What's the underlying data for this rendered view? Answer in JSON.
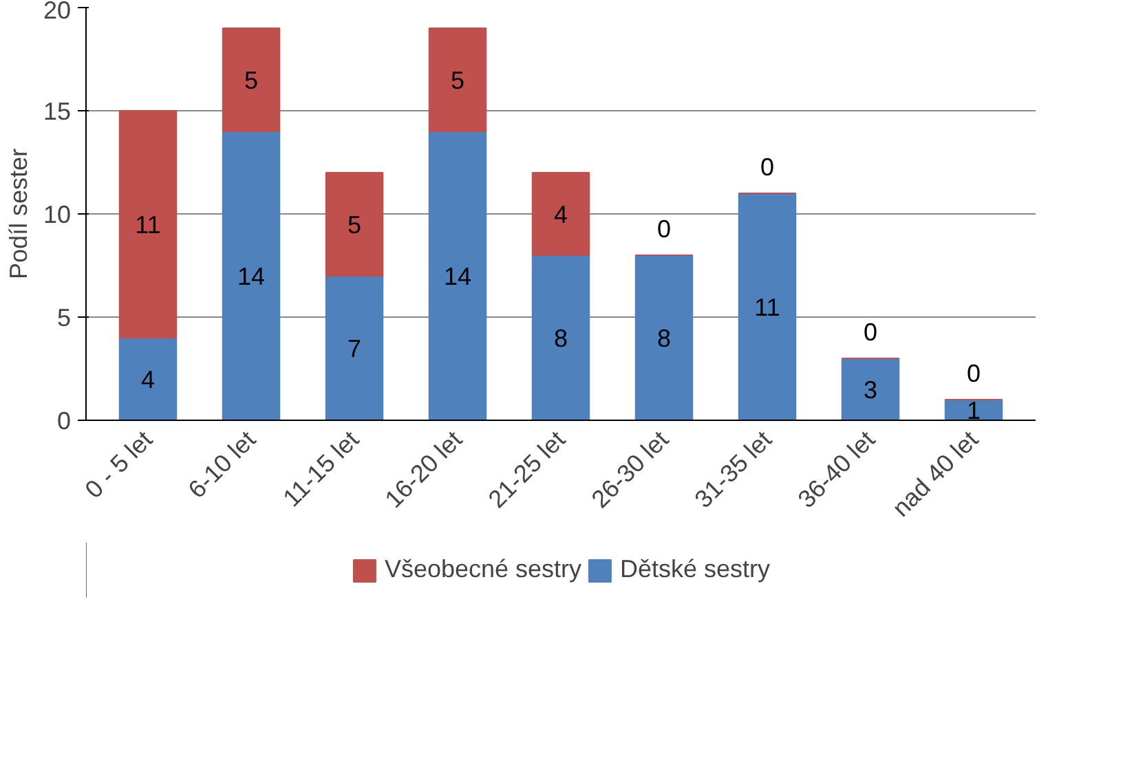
{
  "chart_data": {
    "type": "bar",
    "stacked": true,
    "ylabel": "Podíl sester",
    "categories": [
      "0 - 5 let",
      "6-10 let",
      "11-15 let",
      "16-20 let",
      "21-25 let",
      "26-30 let",
      "31-35 let",
      "36-40 let",
      "nad 40 let"
    ],
    "series": [
      {
        "name": "Dětské sestry",
        "color": "#4f81bd",
        "values": [
          4,
          14,
          7,
          14,
          8,
          8,
          11,
          3,
          1
        ]
      },
      {
        "name": "Všeobecné sestry",
        "color": "#c0504d",
        "values": [
          11,
          5,
          5,
          5,
          4,
          0,
          0,
          0,
          0
        ]
      }
    ],
    "ylim": [
      0,
      20
    ],
    "yticks": [
      0,
      5,
      10,
      15,
      20
    ],
    "grid": "y",
    "legend": "bottom",
    "data_labels": true
  }
}
